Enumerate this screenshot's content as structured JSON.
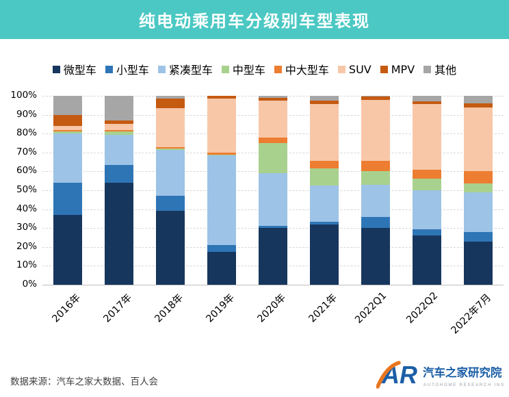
{
  "header": {
    "title": "纯电动乘用车分级别车型表现"
  },
  "chart_data": {
    "type": "bar",
    "variant": "stacked-100-percent",
    "title": "纯电动乘用车分级别车型表现",
    "categories": [
      "2016年",
      "2017年",
      "2018年",
      "2019年",
      "2020年",
      "2021年",
      "2022Q1",
      "2022Q2",
      "2022年7月"
    ],
    "series": [
      {
        "name": "微型车",
        "color": "#17365D",
        "values": [
          37,
          54,
          39,
          17.5,
          30,
          32,
          30,
          26,
          23
        ]
      },
      {
        "name": "小型车",
        "color": "#2E75B6",
        "values": [
          17,
          9.5,
          8,
          3.5,
          1,
          1.5,
          6,
          3.5,
          5
        ]
      },
      {
        "name": "紧凑型车",
        "color": "#9DC3E6",
        "values": [
          26,
          16,
          24.5,
          47.5,
          28,
          19,
          17,
          20.5,
          21
        ]
      },
      {
        "name": "中型车",
        "color": "#A9D18E",
        "values": [
          1,
          1.5,
          0.5,
          0.5,
          16,
          9,
          7,
          6,
          4.5
        ]
      },
      {
        "name": "中大型车",
        "color": "#ED7D31",
        "values": [
          1,
          1,
          1,
          1,
          3,
          4,
          5.5,
          5,
          6.5
        ]
      },
      {
        "name": "SUV",
        "color": "#F8C7A8",
        "values": [
          2,
          3,
          20.5,
          28.5,
          19.5,
          30,
          32.5,
          34.5,
          34
        ]
      },
      {
        "name": "MPV",
        "color": "#C55A11",
        "values": [
          6,
          2,
          5,
          1.5,
          1.5,
          2,
          1.5,
          1.5,
          2
        ]
      },
      {
        "name": "其他",
        "color": "#A6A6A6",
        "values": [
          10,
          13,
          1.5,
          0,
          1,
          2.5,
          0.5,
          3,
          4
        ]
      }
    ],
    "y_ticks": [
      "0%",
      "10%",
      "20%",
      "30%",
      "40%",
      "50%",
      "60%",
      "70%",
      "80%",
      "90%",
      "100%"
    ],
    "ylim": [
      0,
      100
    ],
    "grid": "horizontal-dashed",
    "legend_position": "top"
  },
  "footer": {
    "source": "数据来源：汽车之家大数据、百人会"
  },
  "logo": {
    "mark": "AR",
    "name": "汽车之家研究院",
    "subtitle": "AUTOHOME RESEARCH INSTITUTE",
    "blue": "#1B5EA6",
    "orange": "#E8761F"
  },
  "colors": {
    "banner": "#4BC8C3",
    "axis_text": "#000000",
    "source_text": "#3F3F3F"
  }
}
